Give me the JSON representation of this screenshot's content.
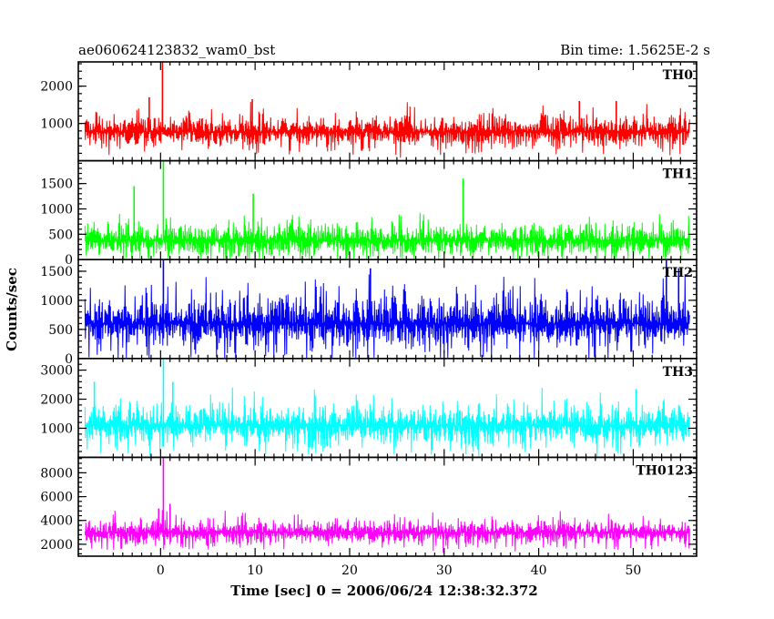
{
  "chart_data": {
    "type": "line",
    "title_left": "ae060624123832_wam0_bst",
    "title_right": "Bin time: 1.5625E-2 s",
    "xlabel": "Time [sec] 0 = 2006/06/24 12:38:32.372",
    "ylabel": "Counts/sec",
    "xlim": [
      -8.7,
      56.7
    ],
    "x_ticks": [
      0,
      10,
      20,
      30,
      40,
      50
    ],
    "x_tick_labels": [
      "0",
      "10",
      "20",
      "30",
      "40",
      "50"
    ],
    "data_x_range": [
      -8.0,
      56.0
    ],
    "bin_time": 0.015625,
    "grid": false,
    "panels": [
      {
        "name": "TH0",
        "color": "#ff0000",
        "ylim": [
          0,
          2650
        ],
        "y_ticks": [
          1000,
          2000
        ],
        "y_tick_labels": [
          "1000",
          "2000"
        ],
        "baseline": 780,
        "low_envelope": 150,
        "high_envelope": 1350,
        "spikes": [
          {
            "x": 0.2,
            "y": 2650
          },
          {
            "x": -1.2,
            "y": 1700
          },
          {
            "x": 9.7,
            "y": 1650
          },
          {
            "x": 44.3,
            "y": 1600
          },
          {
            "x": 48.2,
            "y": 1600
          }
        ]
      },
      {
        "name": "TH1",
        "color": "#00ff00",
        "ylim": [
          0,
          1950
        ],
        "y_ticks": [
          0,
          500,
          1000,
          1500
        ],
        "y_tick_labels": [
          "0",
          "500",
          "1000",
          "1500"
        ],
        "baseline": 380,
        "low_envelope": 50,
        "high_envelope": 950,
        "spikes": [
          {
            "x": 0.3,
            "y": 1950
          },
          {
            "x": -2.8,
            "y": 1450
          },
          {
            "x": 32.0,
            "y": 1600
          },
          {
            "x": 9.8,
            "y": 1300
          }
        ]
      },
      {
        "name": "TH2",
        "color": "#0000ff",
        "ylim": [
          0,
          1700
        ],
        "y_ticks": [
          0,
          500,
          1000,
          1500
        ],
        "y_tick_labels": [
          "0",
          "500",
          "1000",
          "1500"
        ],
        "baseline": 600,
        "low_envelope": 30,
        "high_envelope": 1300,
        "spikes": [
          {
            "x": 0.3,
            "y": 1700
          },
          {
            "x": 53.5,
            "y": 1700
          },
          {
            "x": 54.8,
            "y": 1550
          },
          {
            "x": 22.2,
            "y": 1550
          }
        ]
      },
      {
        "name": "TH3",
        "color": "#00ffff",
        "ylim": [
          0,
          3400
        ],
        "y_ticks": [
          1000,
          2000,
          3000
        ],
        "y_tick_labels": [
          "1000",
          "2000",
          "3000"
        ],
        "baseline": 1100,
        "low_envelope": 250,
        "high_envelope": 2200,
        "spikes": [
          {
            "x": 0.3,
            "y": 3400
          },
          {
            "x": -7.0,
            "y": 2600
          },
          {
            "x": 1.3,
            "y": 2600
          },
          {
            "x": 50.3,
            "y": 2350
          }
        ]
      },
      {
        "name": "TH0123",
        "color": "#ff00ff",
        "ylim": [
          1000,
          9300
        ],
        "y_ticks": [
          2000,
          4000,
          6000,
          8000
        ],
        "y_tick_labels": [
          "2000",
          "4000",
          "6000",
          "8000"
        ],
        "baseline": 3000,
        "low_envelope": 1800,
        "high_envelope": 4600,
        "spikes": [
          {
            "x": 0.3,
            "y": 9300
          },
          {
            "x": 1.0,
            "y": 5400
          },
          {
            "x": -0.2,
            "y": 5000
          }
        ]
      }
    ]
  }
}
